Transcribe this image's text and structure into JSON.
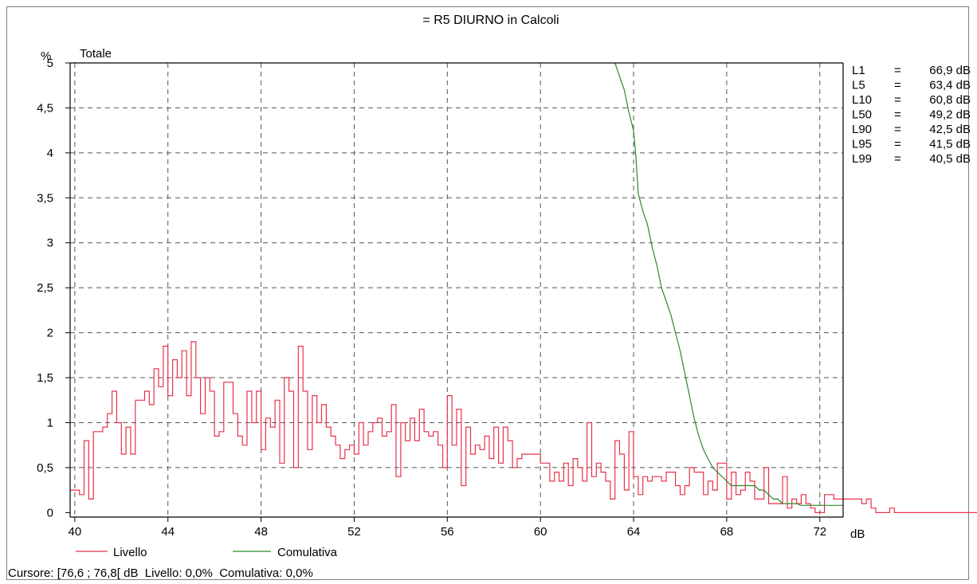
{
  "title": "= R5 DIURNO in Calcoli",
  "status_bar": {
    "cursor_label": "Cursore:",
    "cursor_value": "[76,6 ; 76,8[ dB",
    "livello_label": "Livello:",
    "livello_value": "0,0%",
    "cumulativa_label": "Comulativa:",
    "cumulativa_value": "0,0%"
  },
  "percentiles": [
    {
      "label": "L1",
      "value": "66,9 dB"
    },
    {
      "label": "L5",
      "value": "63,4 dB"
    },
    {
      "label": "L10",
      "value": "60,8 dB"
    },
    {
      "label": "L50",
      "value": "49,2 dB"
    },
    {
      "label": "L90",
      "value": "42,5 dB"
    },
    {
      "label": "L95",
      "value": "41,5 dB"
    },
    {
      "label": "L99",
      "value": "40,5 dB"
    }
  ],
  "colors": {
    "livello": "#e8324a",
    "cumulativa": "#2a8a2a",
    "grid": "#555555"
  },
  "chart_data": {
    "type": "line",
    "title": "= R5 DIURNO in Calcoli",
    "subtitle": "Totale",
    "xlabel": "dB",
    "ylabel": "%",
    "xlim": [
      39.8,
      73
    ],
    "ylim": [
      -0.05,
      5
    ],
    "grid": true,
    "legend_position": "bottom-left",
    "x_ticks": [
      40,
      44,
      48,
      52,
      56,
      60,
      64,
      68,
      72
    ],
    "x_tick_labels": [
      "40",
      "44",
      "48",
      "52",
      "56",
      "60",
      "64",
      "68",
      "72"
    ],
    "y_ticks": [
      0,
      0.5,
      1,
      1.5,
      2,
      2.5,
      3,
      3.5,
      4,
      4.5,
      5
    ],
    "y_tick_labels": [
      "0",
      "0,5",
      "1",
      "1,5",
      "2",
      "2,5",
      "3",
      "3,5",
      "4",
      "4,5",
      "5"
    ],
    "series": [
      {
        "name": "Livello",
        "step": 0.2,
        "x_start": 39.8,
        "values": [
          0.25,
          0.25,
          0.2,
          0.8,
          0.15,
          0.9,
          0.9,
          0.95,
          1.1,
          1.35,
          1.0,
          0.65,
          0.95,
          0.65,
          1.25,
          1.25,
          1.35,
          1.2,
          1.6,
          1.4,
          1.85,
          1.3,
          1.7,
          1.5,
          1.8,
          1.3,
          1.9,
          1.5,
          1.1,
          1.5,
          1.35,
          0.85,
          0.9,
          1.45,
          1.45,
          1.1,
          0.85,
          0.75,
          1.35,
          1.0,
          1.35,
          0.7,
          1.05,
          0.95,
          1.25,
          0.55,
          1.5,
          1.35,
          0.5,
          1.85,
          1.35,
          0.7,
          1.3,
          1.0,
          1.2,
          0.95,
          0.85,
          0.75,
          0.6,
          0.7,
          0.75,
          0.65,
          1.0,
          0.75,
          0.9,
          1.0,
          1.05,
          0.85,
          0.9,
          1.2,
          0.4,
          1.0,
          0.8,
          1.05,
          0.8,
          1.15,
          0.9,
          0.85,
          0.9,
          0.75,
          0.5,
          1.3,
          0.75,
          1.15,
          0.3,
          0.95,
          0.65,
          0.75,
          0.7,
          0.85,
          0.6,
          0.95,
          0.55,
          0.95,
          0.8,
          0.5,
          0.6,
          0.65,
          0.65,
          0.65,
          0.65,
          0.55,
          0.55,
          0.35,
          0.45,
          0.35,
          0.55,
          0.3,
          0.6,
          0.5,
          0.35,
          1.0,
          0.4,
          0.55,
          0.45,
          0.35,
          0.15,
          0.8,
          0.65,
          0.25,
          0.9,
          0.4,
          0.2,
          0.4,
          0.35,
          0.4,
          0.4,
          0.35,
          0.45,
          0.45,
          0.3,
          0.2,
          0.3,
          0.5,
          0.45,
          0.45,
          0.2,
          0.35,
          0.25,
          0.55,
          0.55,
          0.15,
          0.45,
          0.2,
          0.25,
          0.45,
          0.35,
          0.15,
          0.15,
          0.5,
          0.1,
          0.1,
          0.1,
          0.4,
          0.05,
          0.15,
          0.1,
          0.2,
          0.1,
          0.05,
          0.0,
          0.0,
          0.2,
          0.2,
          0.15,
          0.15,
          0.15,
          0.15,
          0.15,
          0.15,
          0.1,
          0.15,
          0.05,
          0.0,
          0.0,
          0.0,
          0.05,
          0.0,
          0.0,
          0.0,
          0.0,
          0.0,
          0.0,
          0.0,
          0.0,
          0.0,
          0.0,
          0.0,
          0.0,
          0.0,
          0.0,
          0.0,
          0.0,
          0.0,
          0.0,
          0.0,
          0.0,
          0.0,
          0.0,
          0.0,
          0.0,
          0.0,
          0.0
        ]
      },
      {
        "name": "Comulativa",
        "x": [
          63.2,
          63.4,
          63.6,
          63.8,
          63.9,
          64.0,
          64.1,
          64.2,
          64.4,
          64.6,
          64.8,
          65.0,
          65.2,
          65.4,
          65.6,
          65.8,
          66.0,
          66.2,
          66.4,
          66.6,
          66.8,
          67.0,
          67.2,
          67.4,
          67.6,
          67.8,
          68.0,
          68.2,
          68.4,
          68.6,
          68.8,
          69.0,
          69.2,
          69.4,
          69.6,
          69.8,
          70.0,
          70.2,
          70.4,
          70.6,
          70.8,
          71.0,
          71.2,
          71.4,
          71.6,
          71.8,
          72.0,
          72.2,
          72.4,
          72.6,
          72.8,
          73.0
        ],
        "values": [
          5.0,
          4.85,
          4.7,
          4.45,
          4.35,
          4.25,
          3.95,
          3.55,
          3.35,
          3.2,
          2.95,
          2.75,
          2.5,
          2.35,
          2.2,
          2.0,
          1.8,
          1.55,
          1.3,
          1.05,
          0.85,
          0.7,
          0.6,
          0.5,
          0.45,
          0.4,
          0.35,
          0.3,
          0.3,
          0.3,
          0.3,
          0.3,
          0.3,
          0.25,
          0.25,
          0.2,
          0.15,
          0.15,
          0.1,
          0.1,
          0.1,
          0.1,
          0.08,
          0.08,
          0.08,
          0.08,
          0.08,
          0.08,
          0.08,
          0.08,
          0.08,
          0.08
        ]
      }
    ]
  }
}
